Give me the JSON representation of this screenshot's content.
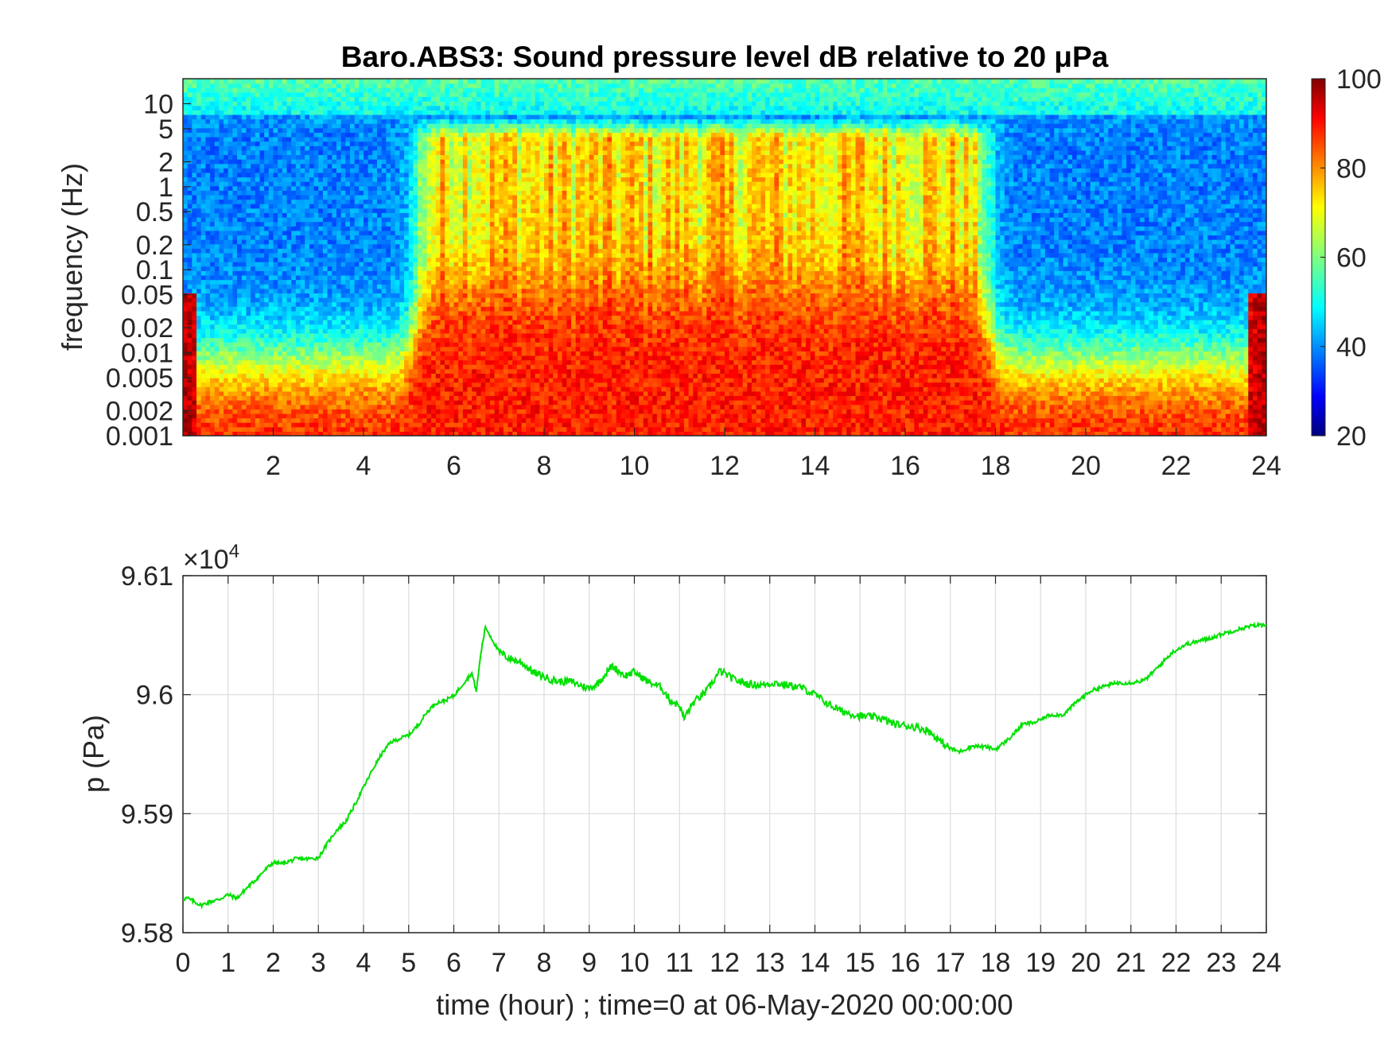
{
  "chart_data": [
    {
      "type": "heatmap",
      "title": "Baro.ABS3: Sound pressure level dB relative to 20 μPa",
      "ylabel": "frequency (Hz)",
      "xlabel": "",
      "y_scale": "log",
      "xlim": [
        0,
        24
      ],
      "ylim": [
        0.001,
        20
      ],
      "x_ticks": [
        2,
        4,
        6,
        8,
        10,
        12,
        14,
        16,
        18,
        20,
        22,
        24
      ],
      "x_tick_labels": [
        "2",
        "4",
        "6",
        "8",
        "10",
        "12",
        "14",
        "16",
        "18",
        "20",
        "22",
        "24"
      ],
      "y_ticks": [
        0.001,
        0.002,
        0.005,
        0.01,
        0.02,
        0.05,
        0.1,
        0.2,
        0.5,
        1,
        2,
        5,
        10
      ],
      "y_tick_labels": [
        "0.001",
        "0.002",
        "0.005",
        "0.01",
        "0.02",
        "0.05",
        "0.1",
        "0.2",
        "0.5",
        "1",
        "2",
        "5",
        "10"
      ],
      "colorbar": {
        "colormap": "jet",
        "clim": [
          20,
          100
        ],
        "ticks": [
          20,
          40,
          60,
          80,
          100
        ],
        "tick_labels": [
          "20",
          "40",
          "60",
          "80",
          "100"
        ],
        "placement": "right"
      },
      "color_bands_db": {
        "description_hours": [
          0,
          24
        ],
        "quiet_periods_hours": [
          [
            0,
            5.2
          ],
          [
            17.8,
            24
          ]
        ],
        "loud_period_hours": [
          5.2,
          17.8
        ],
        "level_quiet_high_freq": 40,
        "level_loud_high_freq": 72,
        "level_low_freq": 88,
        "level_top_band": 50
      }
    },
    {
      "type": "line",
      "title": "",
      "xlabel": "time (hour) ; time=0 at 06-May-2020 00:00:00",
      "ylabel": "p (Pa)",
      "exponent_label": "×10",
      "exponent_power": "4",
      "xlim": [
        0,
        24
      ],
      "ylim": [
        95800,
        96100
      ],
      "x_ticks": [
        0,
        1,
        2,
        3,
        4,
        5,
        6,
        7,
        8,
        9,
        10,
        11,
        12,
        13,
        14,
        15,
        16,
        17,
        18,
        19,
        20,
        21,
        22,
        23,
        24
      ],
      "x_tick_labels": [
        "0",
        "1",
        "2",
        "3",
        "4",
        "5",
        "6",
        "7",
        "8",
        "9",
        "10",
        "11",
        "12",
        "13",
        "14",
        "15",
        "16",
        "17",
        "18",
        "19",
        "20",
        "21",
        "22",
        "23",
        "24"
      ],
      "y_ticks": [
        95800,
        95900,
        96000,
        96100
      ],
      "y_tick_labels": [
        "9.58",
        "9.59",
        "9.6",
        "9.61"
      ],
      "grid": true,
      "series": [
        {
          "color": "#00e000",
          "x": [
            0,
            0.1,
            0.2,
            0.4,
            0.6,
            0.8,
            1.0,
            1.2,
            1.4,
            1.6,
            1.8,
            2.0,
            2.2,
            2.5,
            2.8,
            3.0,
            3.2,
            3.4,
            3.6,
            3.8,
            4.0,
            4.2,
            4.4,
            4.6,
            4.8,
            5.0,
            5.2,
            5.4,
            5.6,
            5.8,
            6.0,
            6.2,
            6.4,
            6.5,
            6.6,
            6.7,
            6.8,
            7.0,
            7.2,
            7.5,
            7.8,
            8.0,
            8.3,
            8.6,
            9.0,
            9.2,
            9.5,
            9.8,
            10.0,
            10.3,
            10.6,
            10.8,
            11.0,
            11.1,
            11.3,
            11.6,
            11.9,
            12.2,
            12.5,
            12.8,
            13.1,
            13.4,
            13.7,
            14.0,
            14.3,
            14.6,
            15.0,
            15.4,
            15.8,
            16.2,
            16.5,
            16.8,
            17.0,
            17.2,
            17.5,
            17.8,
            18.0,
            18.3,
            18.6,
            18.9,
            19.2,
            19.5,
            19.8,
            20.1,
            20.4,
            20.7,
            21.0,
            21.3,
            21.6,
            21.9,
            22.2,
            22.5,
            22.8,
            23.1,
            23.4,
            23.7,
            24.0
          ],
          "y": [
            95828,
            95829,
            95827,
            95823,
            95826,
            95828,
            95832,
            95829,
            95837,
            95844,
            95852,
            95859,
            95858,
            95862,
            95862,
            95863,
            95875,
            95886,
            95893,
            95907,
            95922,
            95937,
            95950,
            95960,
            95963,
            95966,
            95974,
            95985,
            95993,
            95995,
            95999,
            96009,
            96018,
            96003,
            96035,
            96057,
            96050,
            96036,
            96031,
            96027,
            96018,
            96015,
            96011,
            96011,
            96005,
            96010,
            96024,
            96016,
            96019,
            96011,
            96006,
            95995,
            95991,
            95980,
            95993,
            96003,
            96020,
            96013,
            96009,
            96008,
            96010,
            96008,
            96006,
            96000,
            95992,
            95986,
            95982,
            95981,
            95975,
            95973,
            95970,
            95960,
            95955,
            95952,
            95957,
            95956,
            95954,
            95963,
            95975,
            95977,
            95983,
            95983,
            95994,
            96003,
            96007,
            96010,
            96010,
            96012,
            96023,
            96035,
            96042,
            96045,
            96048,
            96052,
            96055,
            96058,
            96059
          ]
        }
      ]
    }
  ]
}
